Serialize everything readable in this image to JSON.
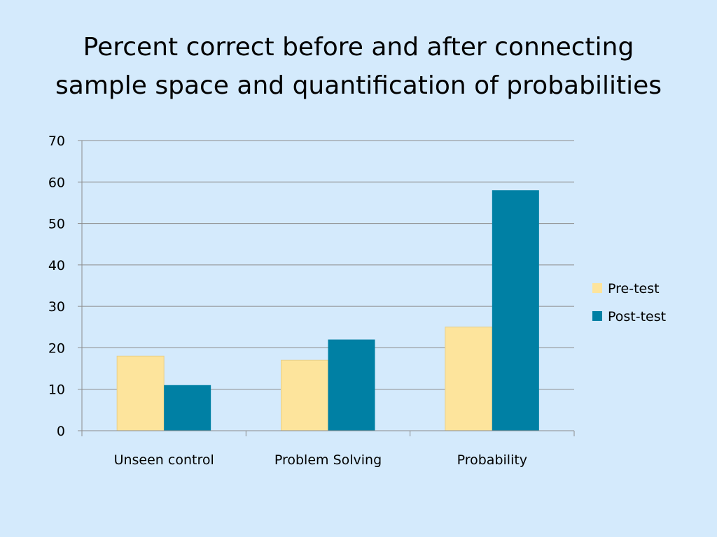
{
  "slide": {
    "title_line1": "Percent correct before and after connecting",
    "title_line2": "sample space and quantification of probabilities"
  },
  "chart_data": {
    "type": "bar",
    "categories": [
      "Unseen control",
      "Problem Solving",
      "Probability"
    ],
    "series": [
      {
        "name": "Pre-test",
        "values": [
          18,
          17,
          25
        ],
        "color": "#fde49c"
      },
      {
        "name": "Post-test",
        "values": [
          11,
          22,
          58
        ],
        "color": "#0080a4"
      }
    ],
    "ylim": [
      0,
      70
    ],
    "yticks": [
      0,
      10,
      20,
      30,
      40,
      50,
      60,
      70
    ],
    "grid": true,
    "legend": "right"
  }
}
